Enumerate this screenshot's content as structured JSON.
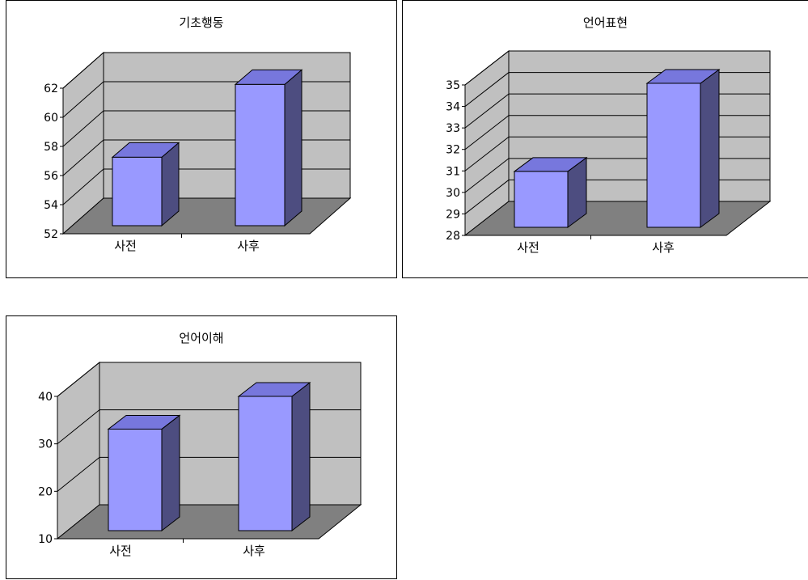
{
  "charts_style": {
    "wall_color": "#c0c0c0",
    "floor_color": "#808080",
    "bar_front": "#9999ff",
    "bar_top": "#7777dd",
    "bar_side": "#4d4d80",
    "line_color": "#000000"
  },
  "chart_data": [
    {
      "type": "bar",
      "title": "기초행동",
      "categories": [
        "사전",
        "사후"
      ],
      "values": [
        56.7,
        61.7
      ],
      "ylim": [
        52,
        62
      ],
      "yticks": [
        "52",
        "54",
        "56",
        "58",
        "60",
        "62"
      ],
      "grid": true
    },
    {
      "type": "bar",
      "title": "언어표현",
      "categories": [
        "사전",
        "사후"
      ],
      "values": [
        30.6,
        34.7
      ],
      "ylim": [
        28,
        35
      ],
      "yticks": [
        "28",
        "29",
        "30",
        "31",
        "32",
        "33",
        "34",
        "35"
      ],
      "grid": true
    },
    {
      "type": "bar",
      "title": "언어이해",
      "categories": [
        "사전",
        "사후"
      ],
      "values": [
        31.4,
        38.3
      ],
      "ylim": [
        10,
        40
      ],
      "yticks": [
        "10",
        "20",
        "30",
        "40"
      ],
      "grid": true
    }
  ]
}
